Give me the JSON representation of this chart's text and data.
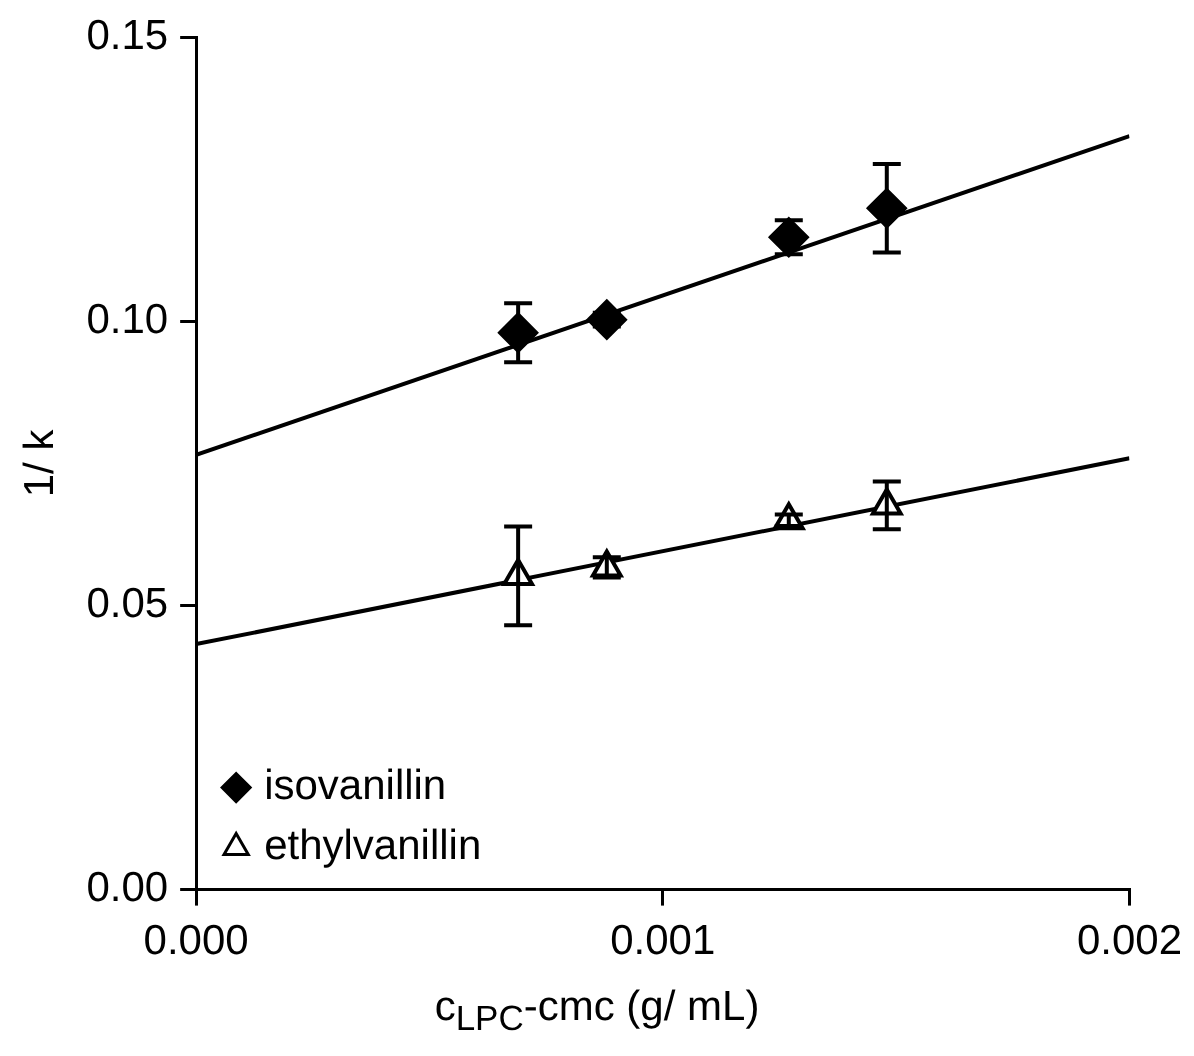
{
  "chart_data": {
    "type": "scatter",
    "xlabel": "c$_{LPC}$-cmc (g/ mL)",
    "ylabel": "1/ k",
    "xlim": [
      0,
      0.002
    ],
    "xticks": [
      {
        "value": 0,
        "label": "0.000"
      },
      {
        "value": 0.001,
        "label": "0.001"
      },
      {
        "value": 0.002,
        "label": "0.002"
      }
    ],
    "ylim": [
      0,
      0.15
    ],
    "yticks": [
      {
        "value": 0,
        "label": "0.00"
      },
      {
        "value": 0.05,
        "label": "0.05"
      },
      {
        "value": 0.1,
        "label": "0.10"
      },
      {
        "value": 0.15,
        "label": "0.15"
      }
    ],
    "grid": false,
    "legend": "bottom left",
    "series": [
      {
        "name": "isovanillin",
        "color": "#000000",
        "marker": "diamond",
        "x": [
          0.00069,
          0.00088,
          0.00127,
          0.00148
        ],
        "values": [
          0.098,
          0.1003,
          0.1148,
          0.1199
        ],
        "errors": [
          0.0052,
          0.0012,
          0.003,
          0.0078
        ]
      },
      {
        "name": "ethylvanillin",
        "color": "#000000",
        "marker": "triangle",
        "x": [
          0.00069,
          0.00088,
          0.00127,
          0.00148
        ],
        "values": [
          0.0552,
          0.0567,
          0.065,
          0.0676
        ],
        "errors": [
          0.0087,
          0.0018,
          0.001,
          0.0042
        ]
      },
      {
        "type": "line",
        "color": "#000000",
        "x": [
          0,
          0.002
        ],
        "values": [
          0.0765,
          0.1326
        ]
      },
      {
        "type": "line",
        "color": "#000000",
        "x": [
          0,
          0.002
        ],
        "values": [
          0.0432,
          0.0759
        ]
      }
    ]
  }
}
